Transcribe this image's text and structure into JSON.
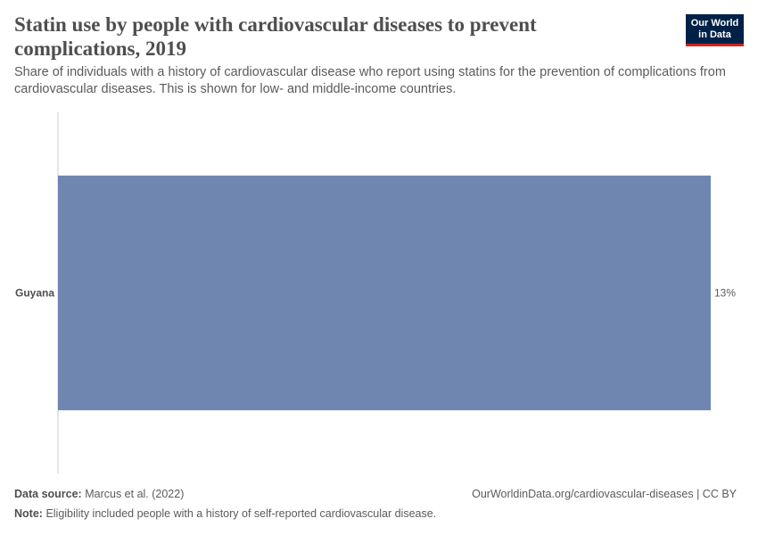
{
  "header": {
    "title": "Statin use by people with cardiovascular diseases to prevent complications, 2019",
    "subtitle": "Share of individuals with a history of cardiovascular disease who report using statins for the prevention of complications from cardiovascular diseases. This is shown for low- and middle-income countries.",
    "logo_line1": "Our World",
    "logo_line2": "in Data"
  },
  "chart_data": {
    "type": "bar",
    "orientation": "horizontal",
    "categories": [
      "Guyana"
    ],
    "values": [
      13
    ],
    "value_labels": [
      "13%"
    ],
    "unit": "%",
    "xlim": [
      0,
      13
    ],
    "bar_color": "#6f87b0",
    "grid": false
  },
  "footer": {
    "source_label": "Data source:",
    "source_value": "Marcus et al. (2022)",
    "url": "OurWorldinData.org/cardiovascular-diseases | CC BY",
    "note_label": "Note:",
    "note_value": "Eligibility included people with a history of self-reported cardiovascular disease."
  }
}
